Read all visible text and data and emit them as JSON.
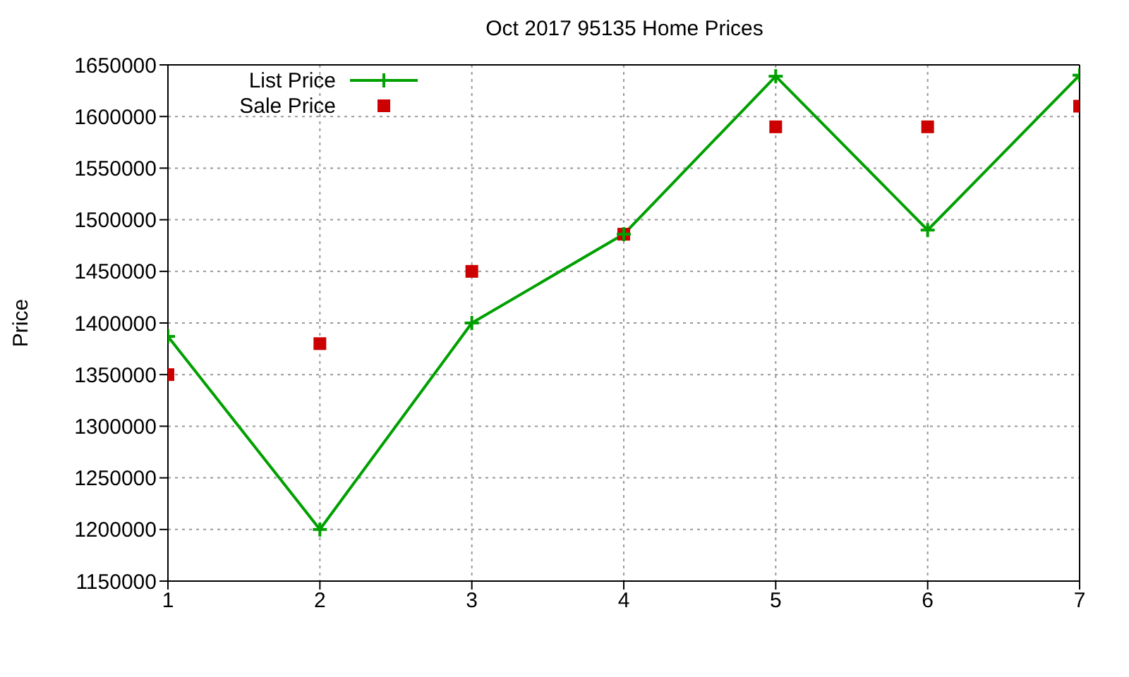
{
  "chart_data": {
    "type": "line",
    "title": "Oct 2017 95135 Home Prices",
    "ylabel": "Price",
    "x": [
      1,
      2,
      3,
      4,
      5,
      6,
      7
    ],
    "series": [
      {
        "name": "List Price",
        "color": "#00a000",
        "marker": "cross",
        "values": [
          1387000,
          1200000,
          1400000,
          1486000,
          1639000,
          1490000,
          1640000
        ]
      },
      {
        "name": "Sale Price",
        "type": "scatter",
        "color": "#cc0000",
        "marker": "square",
        "values": [
          1350000,
          1380000,
          1450000,
          1486000,
          1590000,
          1590000,
          1610000
        ]
      }
    ],
    "xlim": [
      1,
      7
    ],
    "xticks": [
      1,
      2,
      3,
      4,
      5,
      6,
      7
    ],
    "ylim": [
      1150000,
      1650000
    ],
    "yticks": [
      1150000,
      1200000,
      1250000,
      1300000,
      1350000,
      1400000,
      1450000,
      1500000,
      1550000,
      1600000,
      1650000
    ],
    "grid": true,
    "legend": "top left"
  }
}
